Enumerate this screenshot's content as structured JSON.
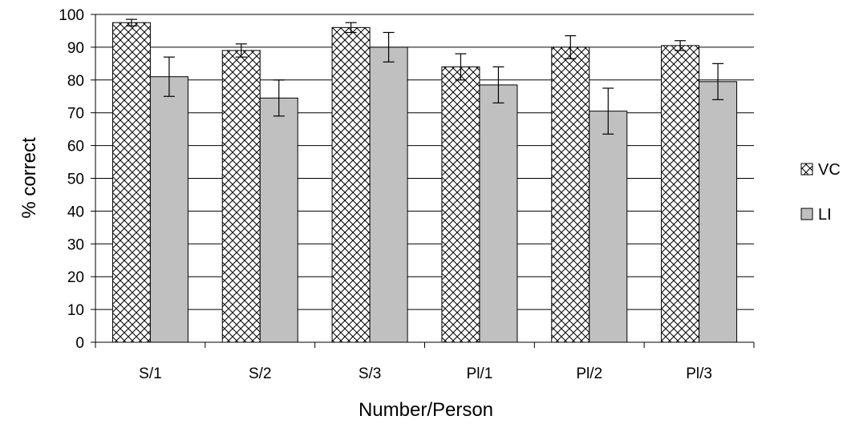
{
  "chart_data": {
    "type": "bar",
    "title": "",
    "xlabel": "Number/Person",
    "ylabel": "% correct",
    "ylim": [
      0,
      100
    ],
    "ytick_step": 10,
    "yticks": [
      "0",
      "10",
      "20",
      "30",
      "40",
      "50",
      "60",
      "70",
      "80",
      "90",
      "100"
    ],
    "grid": true,
    "legend_position": "right",
    "categories": [
      "S/1",
      "S/2",
      "S/3",
      "Pl/1",
      "Pl/2",
      "Pl/3"
    ],
    "series": [
      {
        "name": "VC",
        "pattern": "crosshatch",
        "color": "#ffffff",
        "values": [
          97.5,
          89,
          96,
          84,
          90,
          90.5
        ],
        "error": [
          1,
          2,
          1.5,
          4,
          3.5,
          1.5
        ]
      },
      {
        "name": "LI",
        "pattern": "solid",
        "color": "#c0c0c0",
        "values": [
          81,
          74.5,
          90,
          78.5,
          70.5,
          79.5
        ],
        "error": [
          6,
          5.5,
          4.5,
          5.5,
          7,
          5.5
        ]
      }
    ]
  }
}
